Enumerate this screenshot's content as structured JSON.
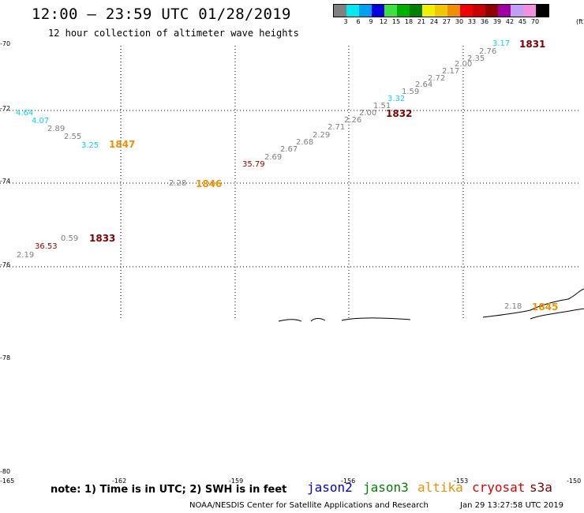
{
  "header": {
    "title": "12:00 – 23:59 UTC 01/28/2019",
    "subtitle": "12 hour collection of altimeter wave heights"
  },
  "colorbar": {
    "unit": "(ft)",
    "labels": [
      "3",
      "6",
      "9",
      "12",
      "15",
      "18",
      "21",
      "24",
      "27",
      "30",
      "33",
      "36",
      "39",
      "42",
      "45",
      "70"
    ],
    "colors": [
      "#808080",
      "#00e8f0",
      "#00a0f0",
      "#0000e0",
      "#40e040",
      "#00b000",
      "#008000",
      "#f0f000",
      "#f0c800",
      "#f09000",
      "#f00000",
      "#c80000",
      "#900000",
      "#a000a0",
      "#c0a0f0",
      "#f090e0",
      "#000000"
    ]
  },
  "map": {
    "lat_labels": [
      "-70",
      "-72",
      "-74",
      "-76",
      "-78",
      "-80"
    ],
    "lon_labels": [
      "-165",
      "-162",
      "-159",
      "-156",
      "-153",
      "-150"
    ],
    "swh_labels": [
      {
        "t": "3.17",
        "c": "#00d8e8"
      },
      {
        "t": "2.76",
        "c": "#808080"
      },
      {
        "t": "2.35",
        "c": "#808080"
      },
      {
        "t": "2.00",
        "c": "#808080"
      },
      {
        "t": "2.17",
        "c": "#808080"
      },
      {
        "t": "2.72",
        "c": "#808080"
      },
      {
        "t": "2.64",
        "c": "#808080"
      },
      {
        "t": "1.59",
        "c": "#808080"
      },
      {
        "t": "3.32",
        "c": "#00d8e8"
      },
      {
        "t": "1.51",
        "c": "#808080"
      },
      {
        "t": "2.00",
        "c": "#808080"
      },
      {
        "t": "2.26",
        "c": "#808080"
      },
      {
        "t": "2.71",
        "c": "#808080"
      },
      {
        "t": "2.29",
        "c": "#808080"
      },
      {
        "t": "2.68",
        "c": "#808080"
      },
      {
        "t": "2.67",
        "c": "#808080"
      },
      {
        "t": "2.69",
        "c": "#808080"
      },
      {
        "t": "35.79",
        "c": "#a00000"
      },
      {
        "t": "2.28",
        "c": "#808080"
      },
      {
        "t": "4.64",
        "c": "#00d8e8"
      },
      {
        "t": "4.07",
        "c": "#00d8e8"
      },
      {
        "t": "2.89",
        "c": "#808080"
      },
      {
        "t": "2.55",
        "c": "#808080"
      },
      {
        "t": "3.25",
        "c": "#00d8e8"
      },
      {
        "t": "0.59",
        "c": "#808080"
      },
      {
        "t": "36.53",
        "c": "#a00000"
      },
      {
        "t": "2.19",
        "c": "#808080"
      },
      {
        "t": "2.18",
        "c": "#808080"
      }
    ],
    "time_tags": [
      {
        "t": "1831",
        "c": "#800000"
      },
      {
        "t": "1832",
        "c": "#800000"
      },
      {
        "t": "1847",
        "c": "#f09000"
      },
      {
        "t": "1846",
        "c": "#f09000"
      },
      {
        "t": "1833",
        "c": "#800000"
      },
      {
        "t": "1845",
        "c": "#f09000"
      }
    ]
  },
  "footer": {
    "note": "note: 1) Time is in UTC; 2) SWH is in feet",
    "satellites": [
      {
        "name": "jason2",
        "color": "#0000e0"
      },
      {
        "name": "jason3",
        "color": "#008000"
      },
      {
        "name": "altika",
        "color": "#f09000"
      },
      {
        "name": "cryosat",
        "color": "#e00000"
      },
      {
        "name": "s3a",
        "color": "#800000"
      }
    ],
    "credit": "NOAA/NESDIS Center for Satellite Applications and Research",
    "timestamp": "Jan 29 13:27:58 UTC 2019"
  }
}
